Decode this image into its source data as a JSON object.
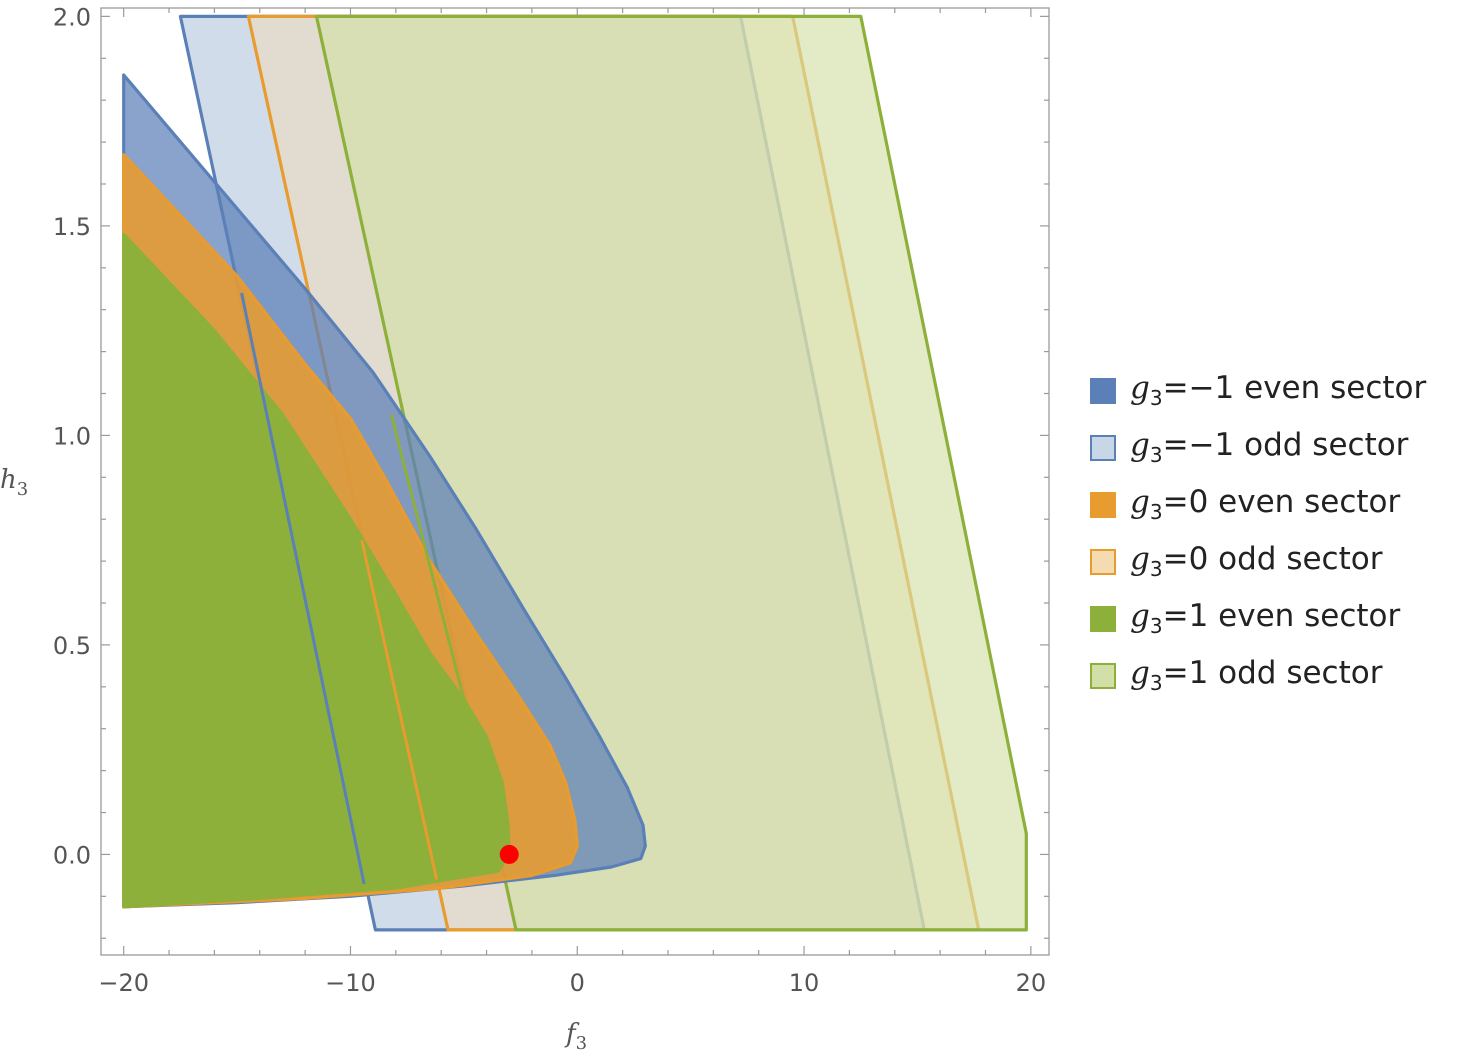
{
  "chart_data": {
    "type": "area",
    "title": "",
    "xlabel": "f",
    "xlabel_sub": "3",
    "ylabel": "h",
    "ylabel_sub": "3",
    "xlim": [
      -21,
      20.8
    ],
    "ylim": [
      -0.24,
      2.02
    ],
    "xticks": [
      -20,
      -10,
      0,
      10,
      20
    ],
    "xtick_labels": [
      "−20",
      "−10",
      "0",
      "10",
      "20"
    ],
    "yticks": [
      0.0,
      0.5,
      1.0,
      1.5,
      2.0
    ],
    "ytick_labels": [
      "0.0",
      "0.5",
      "1.0",
      "1.5",
      "2.0"
    ],
    "grid": false,
    "legend_position": "right",
    "series": [
      {
        "name": "g3=−1 odd sector",
        "var": "g",
        "sub": "3",
        "rel": "=−1 odd sector",
        "fill": "#c9d6e6",
        "fill_opacity": 0.85,
        "stroke": "#5b80b8",
        "polygon": [
          [
            -17.5,
            2.0
          ],
          [
            7.2,
            2.0
          ],
          [
            15.3,
            -0.18
          ],
          [
            -8.9,
            -0.18
          ]
        ]
      },
      {
        "name": "g3=0 odd sector",
        "var": "g",
        "sub": "3",
        "rel": "=0 odd sector",
        "fill": "#f5dcb0",
        "fill_opacity": 0.45,
        "stroke": "#e89b2e",
        "polygon": [
          [
            -14.5,
            2.0
          ],
          [
            9.5,
            2.0
          ],
          [
            17.7,
            -0.18
          ],
          [
            -5.7,
            -0.18
          ]
        ]
      },
      {
        "name": "g3=1 odd sector",
        "var": "g",
        "sub": "3",
        "rel": "=1 odd sector",
        "fill": "#d2e0a8",
        "fill_opacity": 0.65,
        "stroke": "#8cb03a",
        "polygon": [
          [
            -11.5,
            2.0
          ],
          [
            12.5,
            2.0
          ],
          [
            19.8,
            0.05
          ],
          [
            19.8,
            -0.18
          ],
          [
            -2.7,
            -0.18
          ]
        ]
      },
      {
        "name": "g3=−1 even sector",
        "var": "g",
        "sub": "3",
        "rel": "=−1 even sector",
        "fill": "#5b80b8",
        "fill_opacity": 0.72,
        "stroke": "#5b80b8",
        "polygon": [
          [
            -20,
            1.86
          ],
          [
            -12,
            1.35
          ],
          [
            -9,
            1.15
          ],
          [
            -6.5,
            0.95
          ],
          [
            -4.5,
            0.78
          ],
          [
            -2.3,
            0.58
          ],
          [
            -0.5,
            0.42
          ],
          [
            1.0,
            0.28
          ],
          [
            2.2,
            0.16
          ],
          [
            2.9,
            0.07
          ],
          [
            3.0,
            0.02
          ],
          [
            2.8,
            -0.01
          ],
          [
            1.5,
            -0.03
          ],
          [
            -1.0,
            -0.05
          ],
          [
            -5.0,
            -0.075
          ],
          [
            -10.0,
            -0.1
          ],
          [
            -15.0,
            -0.115
          ],
          [
            -20,
            -0.125
          ]
        ]
      },
      {
        "name": "g3=0 even sector",
        "var": "g",
        "sub": "3",
        "rel": "=0 even sector",
        "fill": "#e89b2e",
        "fill_opacity": 0.88,
        "stroke": "#e89b2e",
        "polygon": [
          [
            -20,
            1.67
          ],
          [
            -15,
            1.38
          ],
          [
            -12,
            1.17
          ],
          [
            -10,
            1.04
          ],
          [
            -8.5,
            0.9
          ],
          [
            -6.5,
            0.7
          ],
          [
            -4.5,
            0.53
          ],
          [
            -2.5,
            0.37
          ],
          [
            -1.2,
            0.26
          ],
          [
            -0.5,
            0.17
          ],
          [
            -0.1,
            0.08
          ],
          [
            0.0,
            0.02
          ],
          [
            -0.3,
            -0.02
          ],
          [
            -2.0,
            -0.05
          ],
          [
            -6.0,
            -0.08
          ],
          [
            -12.0,
            -0.105
          ],
          [
            -20,
            -0.125
          ]
        ]
      },
      {
        "name": "g3=1 even sector",
        "var": "g",
        "sub": "3",
        "rel": "=1 even sector",
        "fill": "#8cb03a",
        "fill_opacity": 1.0,
        "stroke": "#8cb03a",
        "polygon": [
          [
            -20,
            1.48
          ],
          [
            -16,
            1.25
          ],
          [
            -13,
            1.05
          ],
          [
            -10,
            0.8
          ],
          [
            -8,
            0.62
          ],
          [
            -6.5,
            0.48
          ],
          [
            -5,
            0.37
          ],
          [
            -4,
            0.28
          ],
          [
            -3.3,
            0.17
          ],
          [
            -3.05,
            0.07
          ],
          [
            -3.0,
            0.0
          ],
          [
            -3.5,
            -0.04
          ],
          [
            -8.0,
            -0.08
          ],
          [
            -14.0,
            -0.105
          ],
          [
            -20,
            -0.125
          ]
        ]
      }
    ],
    "overlay_lines": [
      {
        "stroke": "#5b80b8",
        "points": [
          [
            -14.8,
            1.34
          ],
          [
            -9.4,
            -0.07
          ]
        ]
      },
      {
        "stroke": "#e89b2e",
        "points": [
          [
            -9.5,
            0.75
          ],
          [
            -6.2,
            -0.06
          ]
        ]
      },
      {
        "stroke": "#8cb03a",
        "points": [
          [
            -8.2,
            1.05
          ],
          [
            -5.0,
            0.37
          ]
        ]
      }
    ],
    "marker": {
      "x": -3.0,
      "y": 0.0,
      "color": "#ff0000"
    }
  }
}
